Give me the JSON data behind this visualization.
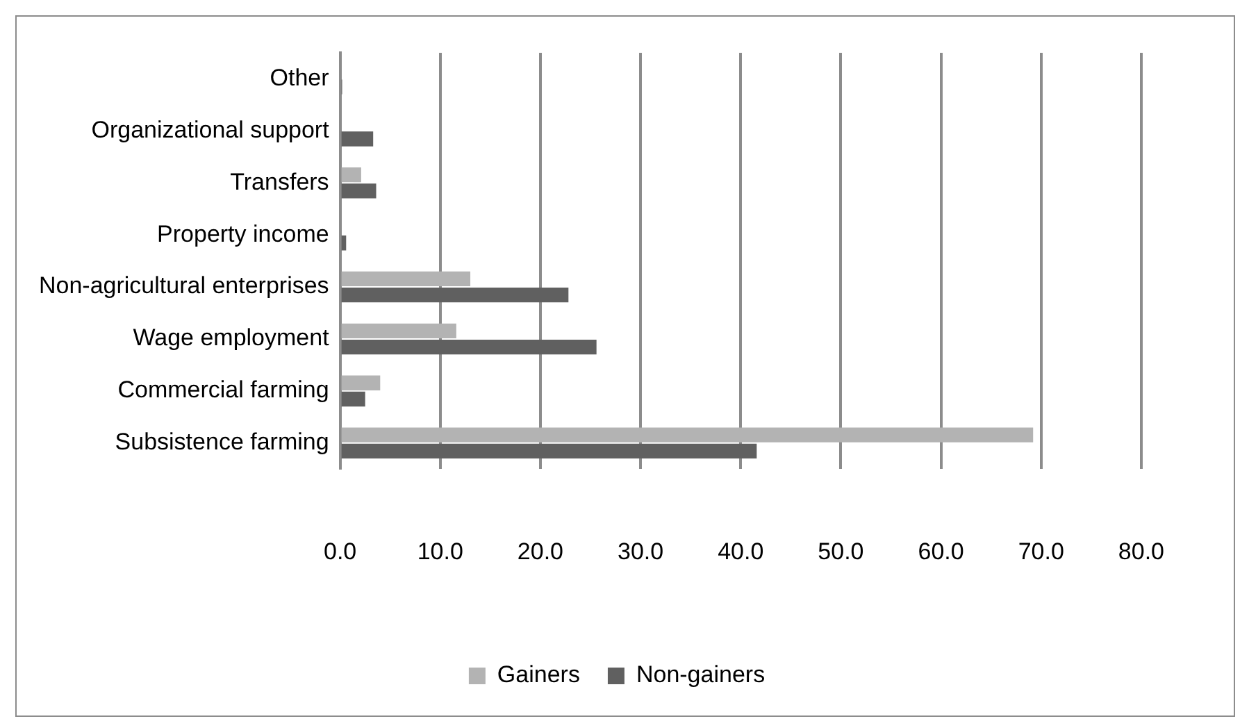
{
  "chart_data": {
    "type": "bar",
    "orientation": "horizontal",
    "categories": [
      "Other",
      "Organizational support",
      "Transfers",
      "Property income",
      "Non-agricultural enterprises",
      "Wage employment",
      "Commercial farming",
      "Subsistence farming"
    ],
    "series": [
      {
        "name": "Gainers",
        "color": "#b3b3b3",
        "values": [
          0,
          0,
          2.1,
          0,
          13.0,
          11.6,
          4.0,
          69.2
        ]
      },
      {
        "name": "Non-gainers",
        "color": "#606060",
        "values": [
          0.2,
          3.3,
          3.6,
          0.6,
          22.8,
          25.6,
          2.5,
          41.6
        ]
      }
    ],
    "xlim": [
      0,
      80
    ],
    "xticks": [
      {
        "value": 0,
        "label": "0.0"
      },
      {
        "value": 10,
        "label": "10.0"
      },
      {
        "value": 20,
        "label": "20.0"
      },
      {
        "value": 30,
        "label": "30.0"
      },
      {
        "value": 40,
        "label": "40.0"
      },
      {
        "value": 50,
        "label": "50.0"
      },
      {
        "value": 60,
        "label": "60.0"
      },
      {
        "value": 70,
        "label": "70.0"
      },
      {
        "value": 80,
        "label": "80.0"
      }
    ],
    "grid": "x",
    "legend": "bottom"
  }
}
